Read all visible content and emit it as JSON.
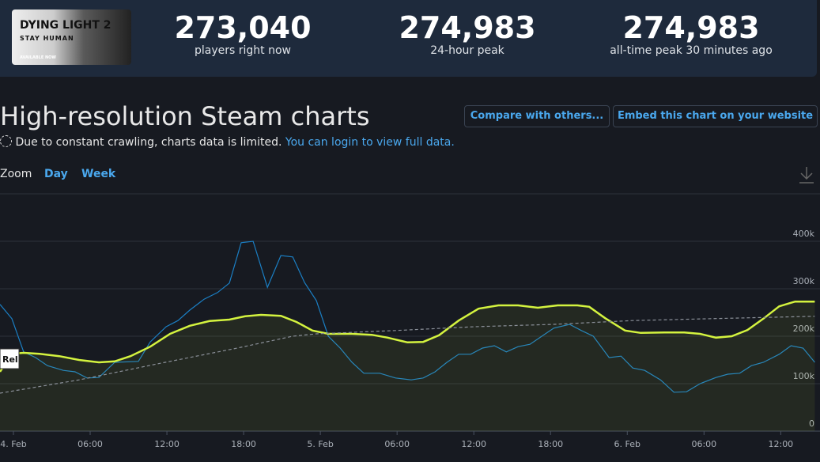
{
  "header": {
    "logo": {
      "line1": "DYING LIGHT 2",
      "line2": "STAY HUMAN",
      "line3": "AVAILABLE NOW"
    },
    "stats": [
      {
        "value": "273,040",
        "label": "players right now"
      },
      {
        "value": "274,983",
        "label": "24-hour peak"
      },
      {
        "value": "274,983",
        "label": "all-time peak 30 minutes ago"
      }
    ]
  },
  "page": {
    "title": "High-resolution Steam charts",
    "notice": "Due to constant crawling, charts data is limited.",
    "notice_link": "You can login to view full data.",
    "buttons": [
      "Compare with others...",
      "Embed this chart on your website"
    ],
    "zoom_label": "Zoom",
    "zoom_options": [
      "Day",
      "Week"
    ]
  },
  "chart_data": {
    "type": "line",
    "annotations": [
      "Rel"
    ],
    "xlim": [
      -1.05,
      63.07
    ],
    "xticks": [
      {
        "value": 0,
        "label": "4. Feb"
      },
      {
        "value": 6,
        "label": "06:00"
      },
      {
        "value": 12,
        "label": "12:00"
      },
      {
        "value": 18,
        "label": "18:00"
      },
      {
        "value": 24,
        "label": "5. Feb"
      },
      {
        "value": 30,
        "label": "06:00"
      },
      {
        "value": 36,
        "label": "12:00"
      },
      {
        "value": 42,
        "label": "18:00"
      },
      {
        "value": 48,
        "label": "6. Feb"
      },
      {
        "value": 54,
        "label": "06:00"
      },
      {
        "value": 60,
        "label": "12:00"
      }
    ],
    "ylim": [
      0,
      500000
    ],
    "yticks": [
      0,
      {
        "value": 100000,
        "label": "100k"
      },
      {
        "value": 200000,
        "label": "200k"
      },
      {
        "value": 300000,
        "label": "300k"
      },
      {
        "value": 400000,
        "label": "400k"
      }
    ],
    "grid": true,
    "series": [
      {
        "color": "#1b7fc4",
        "style": "solid",
        "x": [
          -1.05,
          -0.12,
          0.8,
          1.73,
          2.66,
          3.9,
          4.82,
          5.75,
          6.68,
          7.92,
          9.77,
          10.7,
          11.94,
          12.87,
          13.79,
          14.91,
          15.96,
          16.89,
          17.81,
          18.74,
          19.86,
          20.91,
          21.84,
          22.77,
          23.69,
          24.62,
          25.55,
          26.47,
          27.4,
          28.64,
          29.88,
          31.11,
          32.04,
          32.97,
          33.9,
          34.82,
          35.75,
          36.68,
          37.61,
          38.54,
          39.46,
          40.39,
          41.32,
          42.25,
          43.49,
          44.41,
          45.34,
          46.58,
          47.51,
          48.43,
          49.36,
          50.6,
          51.65,
          52.64,
          53.69,
          54.93,
          55.86,
          56.79,
          57.71,
          58.64,
          59.88,
          60.81,
          61.74,
          62.66
        ],
        "values": [
          267000,
          237000,
          167000,
          155000,
          138000,
          128000,
          125000,
          112000,
          113000,
          145000,
          147000,
          188000,
          220000,
          233000,
          255000,
          278000,
          292000,
          312000,
          397000,
          400000,
          303000,
          370000,
          367000,
          313000,
          275000,
          200000,
          175000,
          145000,
          122000,
          122000,
          112000,
          108000,
          112000,
          125000,
          145000,
          162000,
          162000,
          175000,
          180000,
          167000,
          178000,
          183000,
          200000,
          217000,
          225000,
          212000,
          200000,
          155000,
          158000,
          133000,
          128000,
          108000,
          82000,
          83000,
          100000,
          113000,
          120000,
          122000,
          138000,
          145000,
          162000,
          180000,
          175000,
          145000
        ]
      },
      {
        "color": "#d4f33f",
        "style": "solid",
        "fill": true,
        "x": [
          -1.05,
          -0.12,
          0.8,
          2.04,
          3.59,
          5.13,
          6.68,
          7.92,
          9.15,
          10.7,
          12.25,
          13.79,
          15.34,
          16.89,
          18.12,
          19.36,
          20.91,
          22.14,
          23.38,
          24.62,
          26.47,
          28.02,
          29.26,
          30.81,
          32.04,
          33.28,
          34.82,
          36.37,
          37.92,
          39.46,
          41.01,
          42.56,
          44.1,
          45.03,
          46.27,
          47.82,
          49.05,
          50.91,
          52.46,
          53.69,
          54.93,
          56.17,
          57.4,
          58.64,
          59.88,
          61.12,
          62.66
        ],
        "values": [
          125000,
          163000,
          165000,
          163000,
          158000,
          150000,
          145000,
          147000,
          158000,
          178000,
          205000,
          222000,
          232000,
          235000,
          242000,
          245000,
          243000,
          230000,
          212000,
          205000,
          205000,
          203000,
          197000,
          187000,
          188000,
          202000,
          233000,
          258000,
          265000,
          265000,
          260000,
          265000,
          265000,
          262000,
          238000,
          212000,
          207000,
          208000,
          208000,
          205000,
          197000,
          200000,
          213000,
          237000,
          263000,
          273000,
          273000
        ]
      },
      {
        "color": "#8a8f98",
        "style": "dashed",
        "x": [
          -1.05,
          5.13,
          11.31,
          17.5,
          21.84,
          23.69,
          29.88,
          36.06,
          42.25,
          48.43,
          54.62,
          62.66
        ],
        "values": [
          80000,
          108000,
          142000,
          175000,
          200000,
          205000,
          212000,
          220000,
          225000,
          233000,
          237000,
          242000
        ]
      }
    ]
  }
}
